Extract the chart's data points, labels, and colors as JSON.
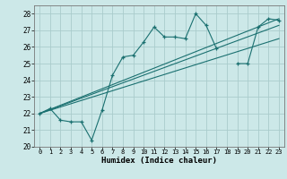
{
  "xlabel": "Humidex (Indice chaleur)",
  "xlim": [
    -0.5,
    23.5
  ],
  "ylim": [
    20,
    28.5
  ],
  "yticks": [
    20,
    21,
    22,
    23,
    24,
    25,
    26,
    27,
    28
  ],
  "xtick_labels": [
    "0",
    "1",
    "2",
    "3",
    "4",
    "5",
    "6",
    "7",
    "8",
    "9",
    "10",
    "11",
    "12",
    "13",
    "14",
    "15",
    "16",
    "17",
    "18",
    "19",
    "20",
    "21",
    "22",
    "23"
  ],
  "bg_color": "#cce8e8",
  "grid_color": "#aacccc",
  "line_color": "#1a7070",
  "main_line": {
    "x": [
      0,
      1,
      2,
      3,
      4,
      5,
      6,
      7,
      8,
      9,
      10,
      11,
      12,
      13,
      14,
      15,
      16,
      17,
      18,
      19,
      20,
      21,
      22,
      23
    ],
    "y": [
      22.0,
      22.3,
      21.6,
      21.5,
      21.5,
      20.4,
      22.2,
      24.3,
      25.4,
      25.5,
      26.3,
      27.2,
      26.6,
      26.6,
      26.5,
      28.0,
      27.3,
      25.9,
      null,
      25.0,
      25.0,
      27.2,
      27.7,
      27.6
    ]
  },
  "trend_lines": [
    {
      "x": [
        0,
        23
      ],
      "y": [
        22.0,
        27.7
      ]
    },
    {
      "x": [
        0,
        23
      ],
      "y": [
        22.0,
        27.3
      ]
    },
    {
      "x": [
        0,
        23
      ],
      "y": [
        22.0,
        26.5
      ]
    }
  ]
}
